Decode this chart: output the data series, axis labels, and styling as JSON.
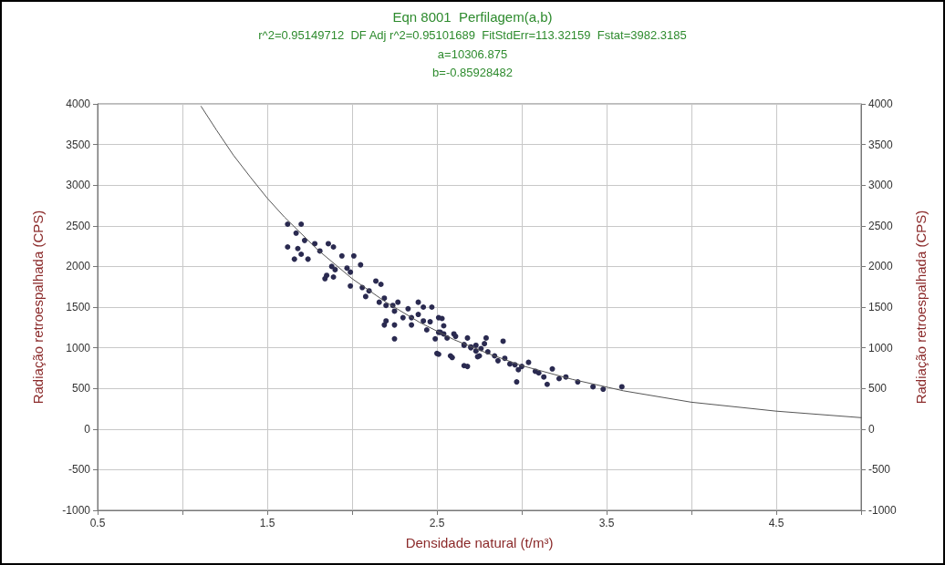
{
  "chart_data": {
    "type": "scatter",
    "title": "Eqn 8001  Perfilagem(a,b)",
    "subtitle": "r^2=0.95149712  DF Adj r^2=0.95101689  FitStdErr=113.32159  Fstat=3982.3185",
    "annotations": [
      "a=10306.875",
      "b=-0.85928482"
    ],
    "xlabel": "Densidade natural (t/m³)",
    "ylabel": "Radiação retroespalhada (CPS)",
    "y2label": "Radiação retroespalhada (CPS)",
    "xlim": [
      0.5,
      5
    ],
    "xticks": [
      0.5,
      {
        "value": 1,
        "label": null
      },
      1.5,
      {
        "value": 2,
        "label": null
      },
      2.5,
      {
        "value": 3,
        "label": null
      },
      3.5,
      {
        "value": 4,
        "label": null
      },
      4.5,
      {
        "value": 5,
        "label": null
      }
    ],
    "ylim": [
      -1000,
      4000
    ],
    "yticks": [
      -1000,
      -500,
      0,
      500,
      1000,
      1500,
      2000,
      2500,
      3000,
      3500,
      4000
    ],
    "y2lim": [
      -1000,
      4000
    ],
    "y2ticks": [
      -1000,
      -500,
      0,
      500,
      1000,
      1500,
      2000,
      2500,
      3000,
      3500,
      4000
    ],
    "grid": true,
    "marker": "circle",
    "series": [
      {
        "color": "#2a2a50",
        "x": [
          1.62,
          1.7,
          1.67,
          1.72,
          1.62,
          1.68,
          1.78,
          1.81,
          1.86,
          1.89,
          1.66,
          1.7,
          1.74,
          1.88,
          1.94,
          2.01,
          1.9,
          1.97,
          1.99,
          2.05,
          1.85,
          1.84,
          1.89,
          1.99,
          2.06,
          2.1,
          2.08,
          2.14,
          2.17,
          2.19,
          2.16,
          2.2,
          2.24,
          2.27,
          2.25,
          2.33,
          2.39,
          2.42,
          2.47,
          2.2,
          2.19,
          2.25,
          2.3,
          2.35,
          2.39,
          2.42,
          2.46,
          2.51,
          2.35,
          2.44,
          2.49,
          2.51,
          2.54,
          2.6,
          2.25,
          2.5,
          2.58,
          2.66,
          2.7,
          2.73,
          2.74,
          2.66,
          2.53,
          2.54,
          2.52,
          2.56,
          2.61,
          2.68,
          2.66,
          2.7,
          2.73,
          2.75,
          2.78,
          2.79,
          2.8,
          2.84,
          2.86,
          2.89,
          2.9,
          2.93,
          2.96,
          2.98,
          3.0,
          3.04,
          3.08,
          3.1,
          3.13,
          3.18,
          3.15,
          3.22,
          3.26,
          3.33,
          3.42,
          3.48,
          3.59,
          2.51,
          2.68,
          2.97,
          2.59,
          2.76
        ],
        "values": [
          2520,
          2520,
          2410,
          2320,
          2240,
          2220,
          2280,
          2190,
          2280,
          2240,
          2090,
          2150,
          2090,
          2000,
          2130,
          2130,
          1960,
          1980,
          1930,
          2020,
          1890,
          1850,
          1870,
          1760,
          1740,
          1700,
          1630,
          1820,
          1780,
          1610,
          1560,
          1520,
          1520,
          1560,
          1450,
          1480,
          1560,
          1500,
          1500,
          1330,
          1280,
          1280,
          1370,
          1370,
          1410,
          1330,
          1320,
          1370,
          1280,
          1220,
          1110,
          1190,
          1170,
          1170,
          1110,
          930,
          900,
          1040,
          1000,
          960,
          890,
          780,
          1360,
          1270,
          1190,
          1120,
          1140,
          1120,
          1030,
          1010,
          1030,
          900,
          1050,
          1120,
          950,
          900,
          840,
          1080,
          870,
          800,
          790,
          730,
          770,
          820,
          710,
          690,
          640,
          740,
          550,
          620,
          640,
          580,
          520,
          490,
          520,
          920,
          770,
          580,
          880,
          990
        ]
      },
      {
        "type": "line",
        "color": "#555555",
        "marker": "none",
        "line_style": "solid",
        "x": [
          1.11,
          1.2,
          1.3,
          1.4,
          1.5,
          1.6,
          1.8,
          2.0,
          2.2,
          2.4,
          2.6,
          2.8,
          3.0,
          3.3,
          3.6,
          4.0,
          4.5,
          5.0
        ],
        "values": [
          3970,
          3680,
          3370,
          3100,
          2840,
          2610,
          2200,
          1850,
          1560,
          1310,
          1100,
          930,
          780,
          610,
          470,
          330,
          220,
          140
        ]
      }
    ]
  }
}
